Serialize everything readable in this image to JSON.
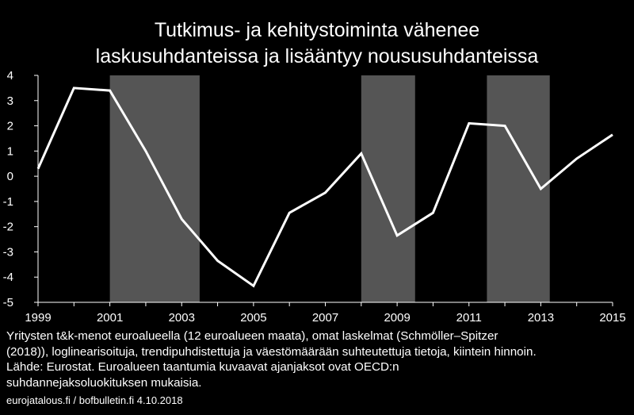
{
  "chart_data": {
    "type": "line",
    "title": "Tutkimus- ja kehitystoiminta vähenee laskusuhdanteissa ja lisääntyy noususuhdanteissa",
    "title_lines": [
      "Tutkimus- ja kehitystoiminta vähenee",
      "laskusuhdanteissa ja lisääntyy noususuhdanteissa"
    ],
    "xlabel": "",
    "ylabel": "",
    "x": [
      1999,
      2000,
      2001,
      2002,
      2003,
      2004,
      2005,
      2006,
      2007,
      2008,
      2009,
      2010,
      2011,
      2012,
      2013,
      2014,
      2015
    ],
    "series": [
      {
        "values": [
          0.3,
          3.5,
          3.4,
          1.0,
          -1.7,
          -3.35,
          -4.35,
          -1.45,
          -0.65,
          0.9,
          -2.35,
          -1.45,
          2.1,
          2.0,
          -0.5,
          0.7,
          1.65
        ]
      }
    ],
    "recession_periods": [
      [
        2001.0,
        2003.5
      ],
      [
        2008.0,
        2009.5
      ],
      [
        2011.5,
        2013.25
      ]
    ],
    "ylim": [
      -5,
      4
    ],
    "xlim": [
      1999,
      2015
    ],
    "y_ticks": [
      "4",
      "3",
      "2",
      "1",
      "0",
      "-1",
      "-2",
      "-3",
      "-4",
      "-5"
    ],
    "x_ticks": [
      "1999",
      "2001",
      "2003",
      "2005",
      "2007",
      "2009",
      "2011",
      "2013",
      "2015"
    ],
    "grid": false,
    "colors": {
      "background": "#000000",
      "line": "#ffffff",
      "recession_band": "#555555",
      "text": "#ffffff"
    }
  },
  "footnote": {
    "lines": [
      "Yritysten t&k-menot euroalueella (12 euroalueen maata), omat laskelmat (Schmöller–Spitzer",
      "(2018)), loglinearisoituja, trendipuhdistettuja ja väestömäärään suhteutettuja tietoja, kiintein hinnoin.",
      "Lähde: Eurostat. Euroalueen taantumia kuvaavat ajanjaksot ovat OECD:n",
      "suhdannejaksoluokituksen mukaisia."
    ],
    "source": "eurojatalous.fi / bofbulletin.fi   4.10.2018"
  }
}
